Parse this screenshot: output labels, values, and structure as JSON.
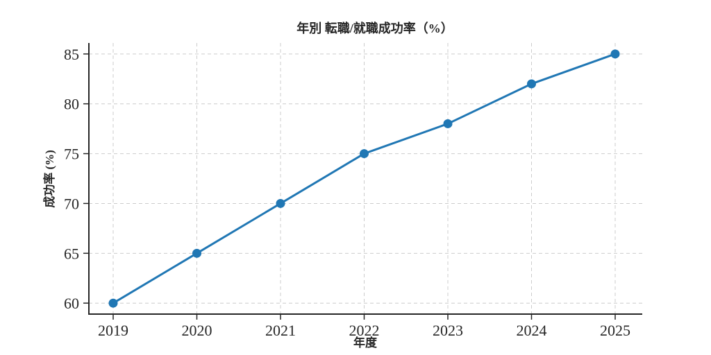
{
  "chart_data": {
    "type": "line",
    "title": "年別 転職/就職成功率（%）",
    "xlabel": "年度",
    "ylabel": "成功率 (%)",
    "categories": [
      "2019",
      "2020",
      "2021",
      "2022",
      "2023",
      "2024",
      "2025"
    ],
    "values": [
      60,
      65,
      70,
      75,
      78,
      82,
      85
    ],
    "yticks": [
      60,
      65,
      70,
      75,
      80,
      85
    ],
    "ylim": [
      58.9,
      86.1
    ],
    "grid": true,
    "legend_position": "none",
    "line_color": "#2077b4",
    "marker": "circle",
    "grid_color": "#cccccc",
    "spine_color": "#262626"
  }
}
